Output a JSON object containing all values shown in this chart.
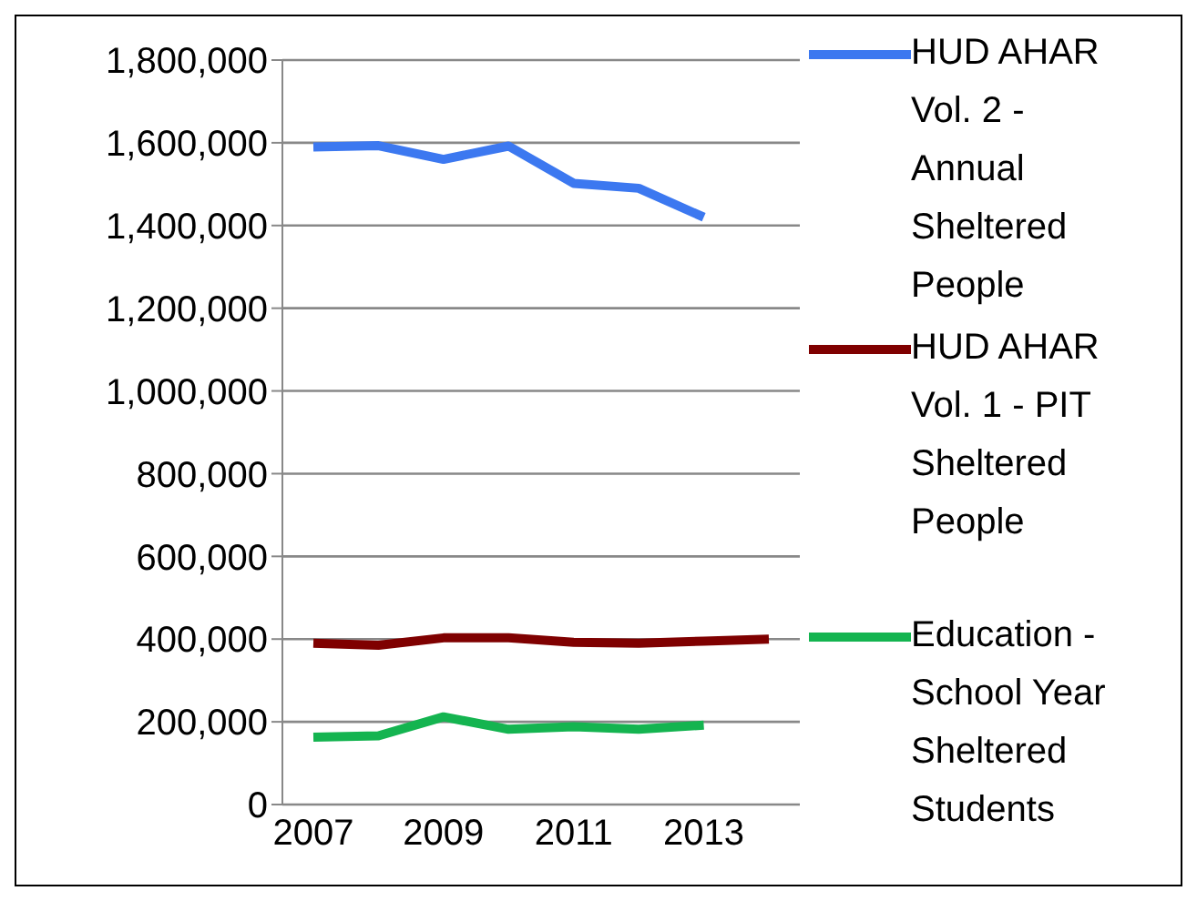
{
  "chart_data": {
    "type": "line",
    "categories": [
      "2007",
      null,
      "2009",
      null,
      "2011",
      null,
      "2013",
      null
    ],
    "series": [
      {
        "name": "HUD AHAR Vol. 2 - Annual Sheltered People",
        "color": "#3c78f0",
        "values": [
          1590000,
          1593000,
          1560000,
          1592000,
          1502000,
          1490000,
          1420000,
          null
        ]
      },
      {
        "name": "HUD AHAR Vol. 1 - PIT Sheltered People",
        "color": "#7f0000",
        "values": [
          390000,
          385000,
          403000,
          403000,
          392000,
          390000,
          395000,
          400000
        ]
      },
      {
        "name": "Education - School Year Sheltered Students",
        "color": "#14b450",
        "values": [
          163000,
          166000,
          212000,
          182000,
          188000,
          182000,
          192000,
          null
        ]
      }
    ],
    "ylim": [
      0,
      1800000
    ],
    "yticks": [
      0,
      {
        "value": 200000,
        "label": "200,000"
      },
      {
        "value": 400000,
        "label": "400,000"
      },
      {
        "value": 600000,
        "label": "600,000"
      },
      {
        "value": 800000,
        "label": "800,000"
      },
      {
        "value": 1000000,
        "label": "1,000,000"
      },
      {
        "value": 1200000,
        "label": "1,200,000"
      },
      {
        "value": 1400000,
        "label": "1,400,000"
      },
      {
        "value": 1600000,
        "label": "1,600,000"
      },
      {
        "value": 1800000,
        "label": "1,800,000"
      }
    ],
    "grid": "y",
    "legend": "right",
    "marker": "none",
    "line_style": "solid"
  }
}
